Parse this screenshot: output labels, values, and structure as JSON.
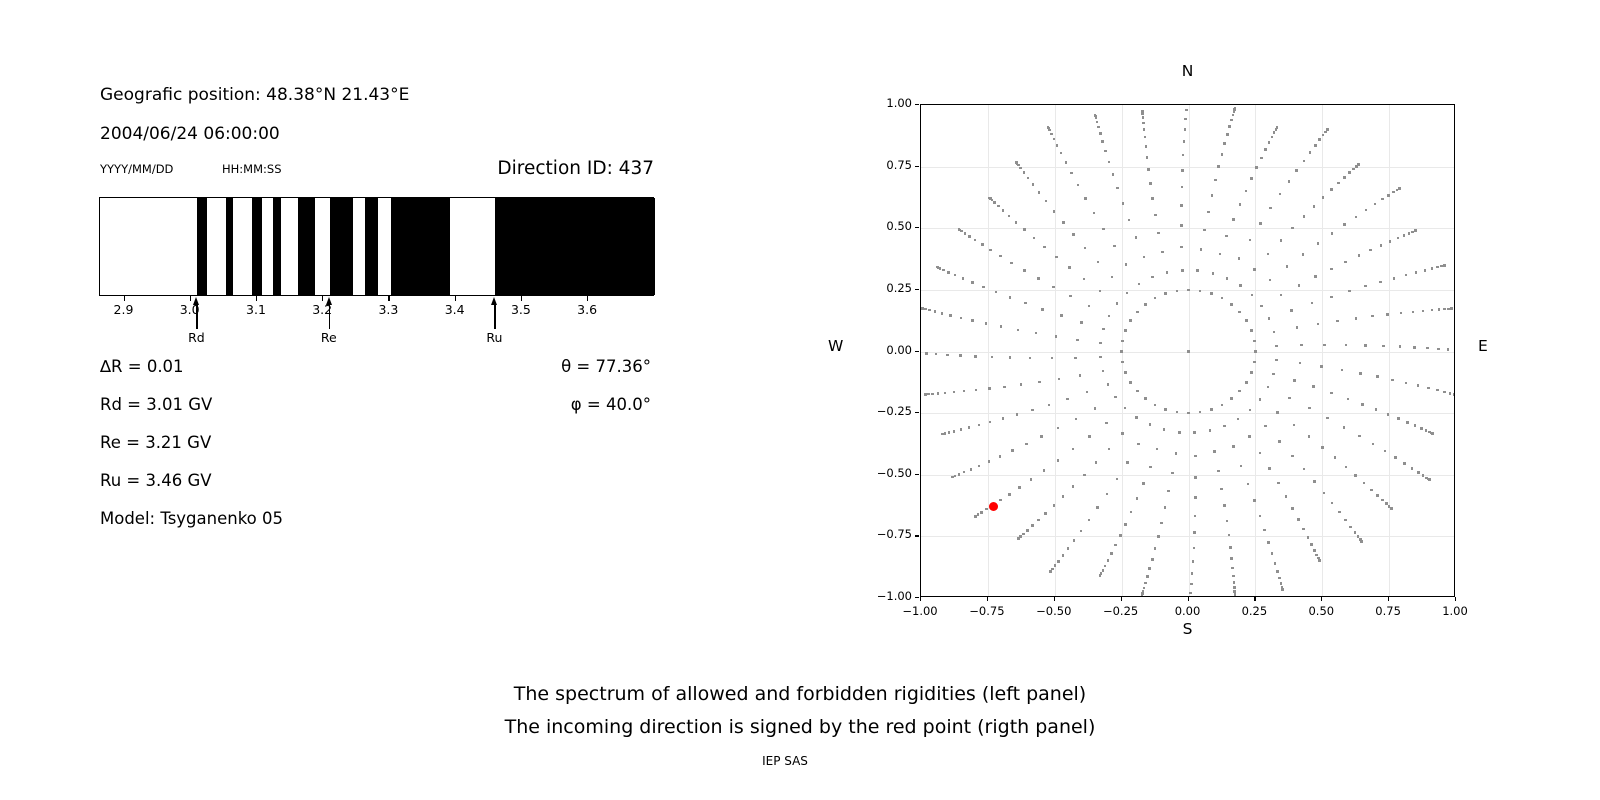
{
  "left_panel": {
    "geo_label": "Geografic position: 48.38°N 21.43°E",
    "datetime": "2004/06/24 06:00:00",
    "date_format": "YYYY/MM/DD",
    "time_format": "HH:MM:SS",
    "direction_id": "Direction ID: 437",
    "params": {
      "delta_r": "∆R = 0.01",
      "rd": "Rd = 3.01 GV",
      "re": "Re = 3.21 GV",
      "ru": "Ru = 3.46 GV",
      "model": "Model: Tsyganenko 05",
      "theta": "θ = 77.36°",
      "phi": "φ = 40.0°"
    }
  },
  "caption": {
    "line1": "The spectrum of allowed and forbidden rigidities (left panel)",
    "line2": "The incoming direction is signed by the red point (rigth panel)",
    "credit": "IEP SAS"
  },
  "chart_data": [
    {
      "type": "bar",
      "name": "rigidity-spectrum",
      "description": "Penumbra barcode: black = allowed rigidities, white = forbidden",
      "axis_range": [
        2.863,
        3.701
      ],
      "tick_values": [
        2.9,
        3.0,
        3.1,
        3.2,
        3.3,
        3.4,
        3.5,
        3.6
      ],
      "allowed_segments": [
        [
          3.01,
          3.024
        ],
        [
          3.053,
          3.064
        ],
        [
          3.092,
          3.107
        ],
        [
          3.124,
          3.136
        ],
        [
          3.162,
          3.188
        ],
        [
          3.21,
          3.245
        ],
        [
          3.263,
          3.283
        ],
        [
          3.302,
          3.392
        ],
        [
          3.46,
          3.701
        ]
      ],
      "arrows": [
        {
          "label": "Rd",
          "value": 3.01
        },
        {
          "label": "Re",
          "value": 3.21
        },
        {
          "label": "Ru",
          "value": 3.46
        }
      ],
      "bar_color": "#000000",
      "background": "#ffffff"
    },
    {
      "type": "scatter",
      "name": "incoming-direction-map",
      "xlim": [
        -1.0,
        1.0
      ],
      "ylim": [
        -1.0,
        1.0
      ],
      "x_ticks": [
        -1.0,
        -0.75,
        -0.5,
        -0.25,
        0.0,
        0.25,
        0.5,
        0.75,
        1.0
      ],
      "y_ticks": [
        -1.0,
        -0.75,
        -0.5,
        -0.25,
        0.0,
        0.25,
        0.5,
        0.75,
        1.0
      ],
      "grid_values": [
        -0.75,
        -0.5,
        -0.25,
        0,
        0.25,
        0.5,
        0.75
      ],
      "grid": true,
      "compass": {
        "n": "N",
        "s": "S",
        "e": "E",
        "w": "W"
      },
      "dot_color": "#8f8f8f",
      "red_point": {
        "x": -0.73,
        "y": -0.63,
        "color": "#ff0000"
      },
      "pattern": {
        "center_dot": true,
        "inner_circle_radius": 0.25,
        "n_spokes": 36,
        "spoke_step_deg": 10,
        "spoke_start_radius": 0.33,
        "dots_per_spoke": 16,
        "inner_curvature_rad": 0.07,
        "tip_radii": [
          1.05,
          1.0,
          1.02,
          0.98,
          1.03,
          0.99,
          1.04,
          0.97,
          1.0,
          1.06,
          0.99,
          1.02,
          1.05,
          1.0,
          0.97,
          0.99,
          1.0,
          1.01,
          1.06,
          1.0,
          0.98,
          1.02,
          1.04,
          0.99,
          1.03,
          0.97,
          1.0,
          1.06,
          1.0,
          1.03,
          0.98,
          1.01,
          0.99,
          1.04,
          0.97,
          1.02
        ]
      }
    }
  ]
}
